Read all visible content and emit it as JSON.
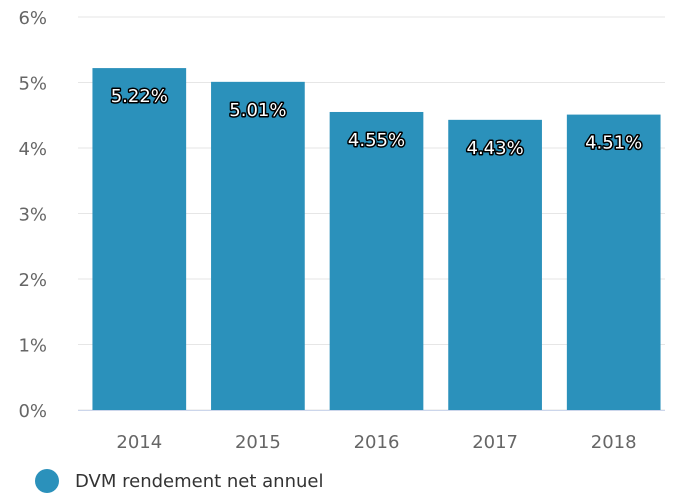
{
  "chart_data": {
    "type": "bar",
    "categories": [
      "2014",
      "2015",
      "2016",
      "2017",
      "2018"
    ],
    "series": [
      {
        "name": "DVM rendement net annuel",
        "color": "#2b91bb",
        "values": [
          5.22,
          5.01,
          4.55,
          4.43,
          4.51
        ],
        "value_labels": [
          "5.22%",
          "5.01%",
          "4.55%",
          "4.43%",
          "4.51%"
        ]
      }
    ],
    "ylim": [
      0,
      6
    ],
    "yticks": [
      {
        "value": 0,
        "label": "0%"
      },
      {
        "value": 1,
        "label": "1%"
      },
      {
        "value": 2,
        "label": "2%"
      },
      {
        "value": 3,
        "label": "3%"
      },
      {
        "value": 4,
        "label": "4%"
      },
      {
        "value": 5,
        "label": "5%"
      },
      {
        "value": 6,
        "label": "6%"
      }
    ],
    "grid": true
  }
}
